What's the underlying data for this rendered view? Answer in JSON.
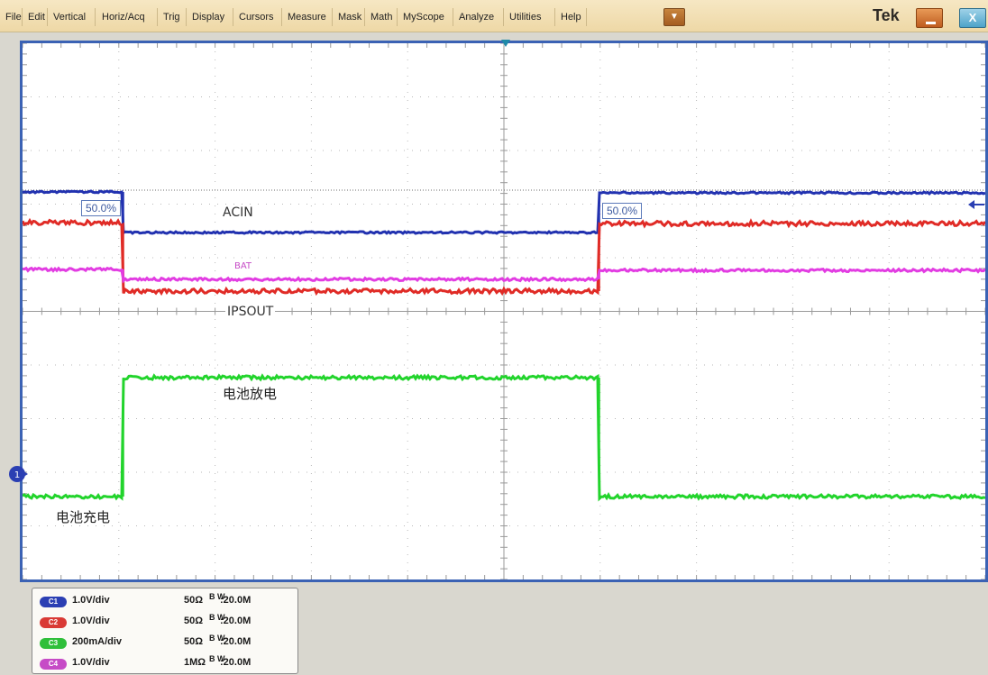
{
  "menu": {
    "items": [
      "File",
      "Edit",
      "Vertical",
      "Horiz/Acq",
      "Trig",
      "Display",
      "Cursors",
      "Measure",
      "Mask",
      "Math",
      "MyScope",
      "Analyze",
      "Utilities",
      "Help"
    ],
    "dropdown_arrow": "▼",
    "brand": "Tek",
    "close_label": "X"
  },
  "waveform_labels": {
    "acin": "ACIN",
    "bat": "BAT",
    "ipsout": "IPSOUT",
    "discharge": "电池放电",
    "charge": "电池充电",
    "pct_left": "50.0%",
    "pct_right": "50.0%",
    "ch1_marker": "1"
  },
  "channels": [
    {
      "badge": "C1",
      "color": "#2b3fb3",
      "scale": "1.0V/div",
      "impedance": "50Ω",
      "bw_icon": "B W",
      "bw": ":20.0M"
    },
    {
      "badge": "C2",
      "color": "#d93a35",
      "scale": "1.0V/div",
      "impedance": "50Ω",
      "bw_icon": "B W",
      "bw": ":20.0M"
    },
    {
      "badge": "C3",
      "color": "#2fbf3a",
      "scale": "200mA/div",
      "impedance": "50Ω",
      "bw_icon": "B W",
      "bw": ":20.0M"
    },
    {
      "badge": "C4",
      "color": "#c64bc6",
      "scale": "1.0V/div",
      "impedance": "1MΩ",
      "bw_icon": "B W",
      "bw": ":20.0M"
    }
  ],
  "colors": {
    "ch1": "#2232b0",
    "ch2": "#e02b26",
    "ch3": "#22d42c",
    "ch4": "#e23ce2",
    "graticule_border": "#3b62b4",
    "menubar": "#f3e2b8"
  }
}
